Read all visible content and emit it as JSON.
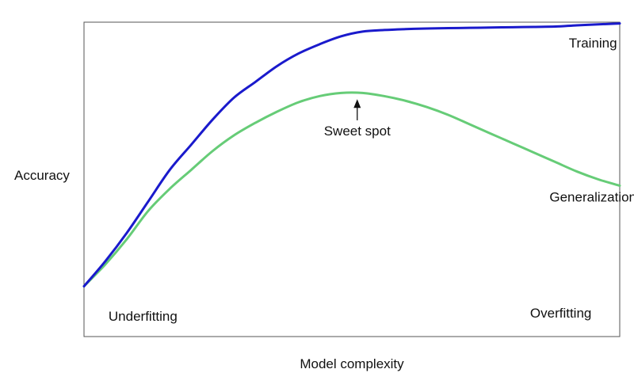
{
  "chart_data": {
    "type": "line",
    "title": "",
    "xlabel": "Model complexity",
    "ylabel": "Accuracy",
    "xlim": [
      0,
      100
    ],
    "ylim": [
      0,
      100
    ],
    "grid": false,
    "legend": "none",
    "series": [
      {
        "name": "Training",
        "color": "#1a1acc",
        "x": [
          0,
          4,
          8,
          12,
          16,
          20,
          24,
          28,
          32,
          36,
          40,
          44,
          48,
          52,
          56,
          60,
          64,
          68,
          72,
          76,
          80,
          84,
          88,
          92,
          96,
          100
        ],
        "y": [
          16,
          24,
          33,
          43,
          53,
          61,
          69,
          76,
          81,
          86,
          90,
          93,
          95.5,
          97,
          97.5,
          97.8,
          98,
          98.1,
          98.2,
          98.3,
          98.4,
          98.5,
          98.6,
          99,
          99.3,
          99.6
        ]
      },
      {
        "name": "Generalization",
        "color": "#66cc77",
        "x": [
          0,
          4,
          8,
          12,
          16,
          20,
          24,
          28,
          32,
          36,
          40,
          44,
          48,
          52,
          56,
          60,
          64,
          68,
          72,
          76,
          80,
          84,
          88,
          92,
          96,
          100
        ],
        "y": [
          16,
          23,
          31,
          40,
          47,
          53,
          59,
          64,
          68,
          71.5,
          74.5,
          76.5,
          77.5,
          77.5,
          76.5,
          75,
          73,
          70.5,
          67.5,
          64.5,
          61.5,
          58.5,
          55.5,
          52.5,
          50,
          48
        ]
      }
    ],
    "annotations": [
      {
        "text": "Training",
        "x": 95,
        "y": 92
      },
      {
        "text": "Generalization",
        "x": 95,
        "y": 43
      },
      {
        "text": "Sweet spot",
        "x": 51,
        "y": 64,
        "arrow_to": {
          "x": 51,
          "y": 76
        }
      },
      {
        "text": "Underfitting",
        "x": 11,
        "y": 5
      },
      {
        "text": "Overfitting",
        "x": 89,
        "y": 6
      }
    ]
  }
}
